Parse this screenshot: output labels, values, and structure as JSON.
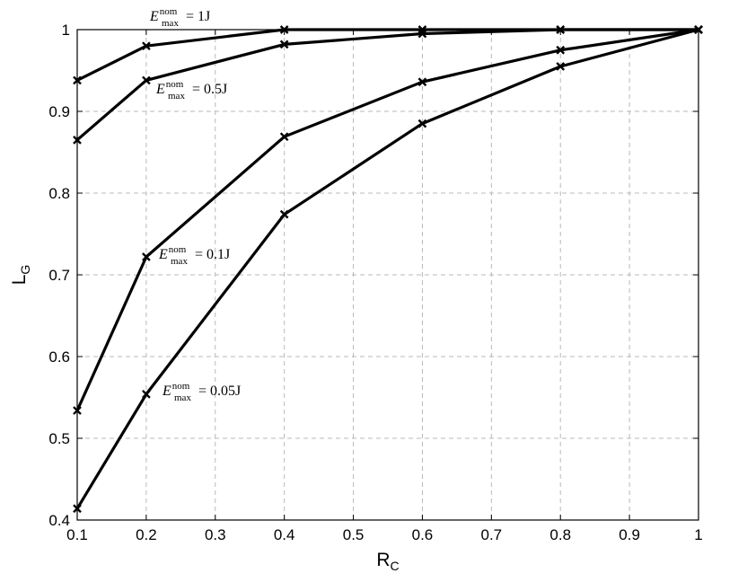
{
  "chart_data": {
    "type": "line",
    "xlabel": {
      "main": "R",
      "sub": "C"
    },
    "ylabel": {
      "main": "L",
      "sub": "G"
    },
    "xlim": [
      0.1,
      1
    ],
    "ylim": [
      0.4,
      1
    ],
    "grid": true,
    "xticks": [
      "0.1",
      "0.2",
      "0.3",
      "0.4",
      "0.5",
      "0.6",
      "0.7",
      "0.8",
      "0.9",
      "1"
    ],
    "yticks": [
      "0.4",
      "0.5",
      "0.6",
      "0.7",
      "0.8",
      "0.9",
      "1"
    ],
    "x": [
      0.1,
      0.2,
      0.4,
      0.6,
      0.8,
      1.0
    ],
    "series": [
      {
        "values": [
          0.938,
          0.98,
          1.0,
          1.0,
          1.0,
          1.0
        ],
        "annotation": {
          "var": "E",
          "sup": "nom",
          "sub": "max",
          "rest": " = 1J"
        }
      },
      {
        "values": [
          0.865,
          0.938,
          0.982,
          0.995,
          1.0,
          1.0
        ],
        "annotation": {
          "var": "E",
          "sup": "nom",
          "sub": "max",
          "rest": " = 0.5J"
        }
      },
      {
        "values": [
          0.534,
          0.722,
          0.869,
          0.936,
          0.975,
          1.0
        ],
        "annotation": {
          "var": "E",
          "sup": "nom",
          "sub": "max",
          "rest": " = 0.1J"
        }
      },
      {
        "values": [
          0.414,
          0.554,
          0.774,
          0.885,
          0.955,
          1.0
        ],
        "annotation": {
          "var": "E",
          "sup": "nom",
          "sub": "max",
          "rest": " = 0.05J"
        }
      }
    ],
    "marker": "x",
    "line_color": "#000000",
    "grid_color": "#b8b8b8"
  }
}
